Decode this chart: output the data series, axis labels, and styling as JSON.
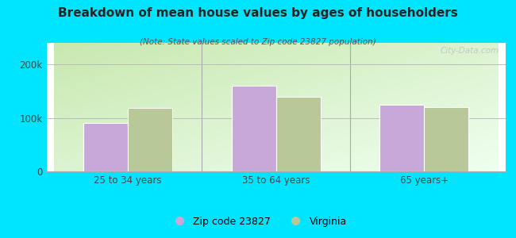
{
  "title": "Breakdown of mean house values by ages of householders",
  "subtitle": "(Note: State values scaled to Zip code 23827 population)",
  "categories": [
    "25 to 34 years",
    "35 to 64 years",
    "65 years+"
  ],
  "zip_values": [
    90000,
    160000,
    125000
  ],
  "state_values": [
    118000,
    140000,
    120000
  ],
  "zip_color": "#c8a8d8",
  "state_color": "#b8c898",
  "bar_width": 0.3,
  "ylim": [
    0,
    240000
  ],
  "yticks": [
    0,
    100000,
    200000
  ],
  "ytick_labels": [
    "0",
    "100k",
    "200k"
  ],
  "outer_bg": "#00e5ff",
  "chart_bg_top_left": "#c8e8c0",
  "chart_bg_bottom_right": "#f5fff5",
  "legend_zip_label": "Zip code 23827",
  "legend_state_label": "Virginia",
  "watermark": "City-Data.com"
}
